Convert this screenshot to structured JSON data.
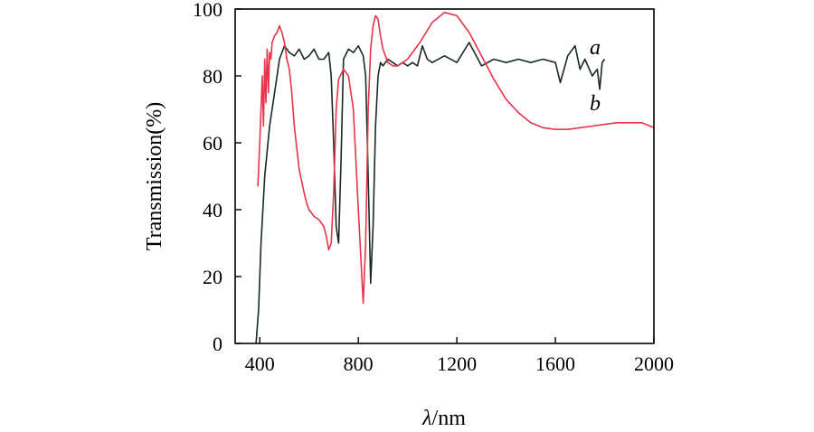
{
  "chart_data": {
    "type": "line",
    "title": "",
    "xlabel_italic": "λ",
    "xlabel_rest": "/nm",
    "ylabel": "Transmission(%)",
    "xlim": [
      300,
      2000
    ],
    "ylim": [
      0,
      100
    ],
    "xticks": [
      400,
      800,
      1200,
      1600,
      2000
    ],
    "yticks": [
      0,
      20,
      40,
      60,
      80,
      100
    ],
    "grid": false,
    "legend": "none",
    "series": [
      {
        "name": "a",
        "color": "#1a2a22",
        "x": [
          385,
          395,
          405,
          420,
          440,
          460,
          480,
          500,
          520,
          540,
          560,
          580,
          600,
          620,
          640,
          660,
          680,
          690,
          700,
          710,
          720,
          730,
          740,
          760,
          780,
          800,
          820,
          830,
          840,
          850,
          860,
          870,
          880,
          890,
          900,
          920,
          940,
          960,
          980,
          1000,
          1020,
          1040,
          1060,
          1080,
          1100,
          1150,
          1200,
          1250,
          1300,
          1350,
          1400,
          1450,
          1500,
          1550,
          1600,
          1620,
          1650,
          1680,
          1700,
          1720,
          1750,
          1770,
          1780,
          1790,
          1800
        ],
        "values": [
          0,
          10,
          30,
          50,
          65,
          75,
          85,
          89,
          87,
          86,
          88,
          85,
          86,
          88,
          85,
          85,
          87,
          80,
          60,
          35,
          30,
          55,
          85,
          88,
          87,
          89,
          86,
          80,
          50,
          18,
          35,
          65,
          80,
          84,
          83,
          85,
          84,
          83,
          84,
          83,
          84,
          83,
          89,
          85,
          84,
          86,
          84,
          90,
          83,
          85,
          84,
          85,
          84,
          85,
          84,
          78,
          86,
          89,
          82,
          85,
          80,
          82,
          76,
          84,
          85
        ]
      },
      {
        "name": "b",
        "color": "#e8334a",
        "x": [
          392,
          400,
          410,
          415,
          420,
          425,
          430,
          435,
          440,
          445,
          450,
          460,
          470,
          480,
          490,
          500,
          510,
          520,
          530,
          540,
          560,
          580,
          590,
          600,
          620,
          640,
          660,
          670,
          680,
          690,
          700,
          710,
          720,
          740,
          760,
          780,
          800,
          820,
          830,
          840,
          850,
          860,
          870,
          880,
          890,
          900,
          920,
          940,
          960,
          980,
          1000,
          1050,
          1100,
          1150,
          1200,
          1250,
          1300,
          1350,
          1400,
          1450,
          1500,
          1550,
          1600,
          1650,
          1700,
          1750,
          1800,
          1850,
          1900,
          1950,
          2000
        ],
        "values": [
          47,
          60,
          80,
          65,
          85,
          72,
          88,
          75,
          87,
          85,
          90,
          92,
          93,
          95,
          93,
          90,
          85,
          82,
          75,
          65,
          52,
          45,
          42,
          40,
          38,
          37,
          35,
          32,
          28,
          30,
          45,
          70,
          79,
          82,
          80,
          70,
          40,
          12,
          30,
          70,
          88,
          95,
          98,
          97,
          92,
          88,
          84,
          83,
          83,
          84,
          85,
          90,
          96,
          99,
          98,
          93,
          86,
          79,
          73,
          69,
          66,
          64.5,
          64,
          64,
          64.5,
          65,
          65.5,
          66,
          66,
          66,
          64.5
        ]
      }
    ]
  }
}
